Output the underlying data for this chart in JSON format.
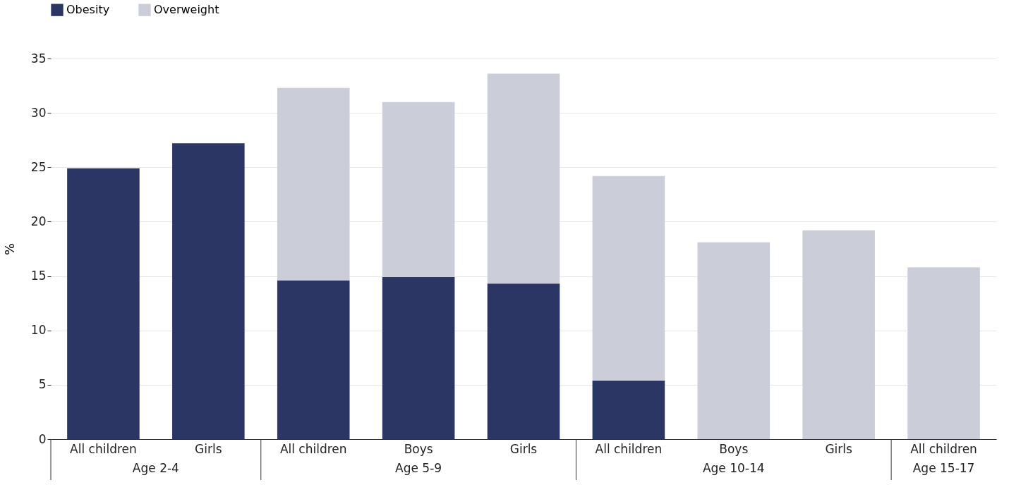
{
  "chart_data": {
    "type": "bar",
    "stacked": true,
    "ylabel": "%",
    "categories": [
      "All children",
      "Girls",
      "All children",
      "Boys",
      "Girls",
      "All children",
      "Boys",
      "Girls",
      "All children"
    ],
    "series": [
      {
        "name": "Obesity",
        "color": "#2b3664",
        "values": [
          24.9,
          27.2,
          14.6,
          14.9,
          14.3,
          5.4,
          null,
          null,
          null
        ]
      },
      {
        "name": "Overweight",
        "color": "#cbcdd9",
        "values": [
          null,
          null,
          17.7,
          16.1,
          19.3,
          18.8,
          18.1,
          19.2,
          15.8
        ]
      }
    ],
    "annotations": [
      "Age 2-4",
      "Age 5-9",
      "Age 10-14",
      "Age 15-17"
    ],
    "ylim": [
      0,
      35
    ],
    "yticks": [
      0,
      5,
      10,
      15,
      20,
      25,
      30,
      35
    ],
    "grid": "y",
    "legend": "top left"
  }
}
